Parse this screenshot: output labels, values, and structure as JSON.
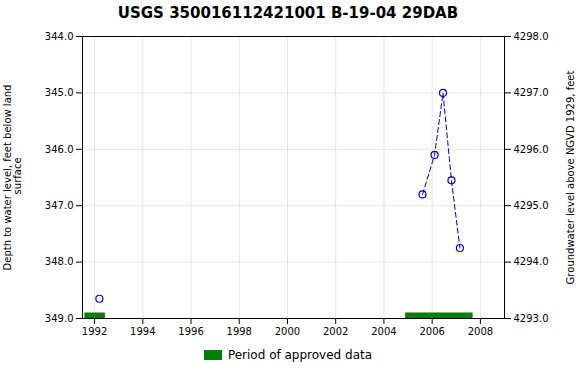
{
  "chart_data": {
    "type": "line",
    "title": "USGS 350016112421001 B-19-04 29DAB",
    "ylabel": "Depth to water level, feet below land\n surface",
    "y2label": "Groundwater level above NGVD 1929, feet",
    "xlim": [
      1991.5,
      2009.0
    ],
    "xticks": [
      1992,
      1994,
      1996,
      1998,
      2000,
      2002,
      2004,
      2006,
      2008
    ],
    "ylim": [
      349.0,
      344.0
    ],
    "yticks": [
      {
        "value": 344.0,
        "label": "344.0"
      },
      {
        "value": 345.0,
        "label": "345.0"
      },
      {
        "value": 346.0,
        "label": "346.0"
      },
      {
        "value": 347.0,
        "label": "347.0"
      },
      {
        "value": 348.0,
        "label": "348.0"
      },
      {
        "value": 349.0,
        "label": "349.0"
      }
    ],
    "y2lim": [
      4293.0,
      4298.0
    ],
    "y2ticks": [
      {
        "value": 4293.0,
        "label": "4293.0"
      },
      {
        "value": 4294.0,
        "label": "4294.0"
      },
      {
        "value": 4295.0,
        "label": "4295.0"
      },
      {
        "value": 4296.0,
        "label": "4296.0"
      },
      {
        "value": 4297.0,
        "label": "4297.0"
      },
      {
        "value": 4298.0,
        "label": "4298.0"
      }
    ],
    "grid": true,
    "series": [
      {
        "x": [
          1992.2
        ],
        "values": [
          348.65
        ],
        "color": "#0000cc",
        "marker": "circle",
        "line_style": "none"
      },
      {
        "x": [
          2005.6,
          2006.1,
          2006.45,
          2006.8,
          2007.15
        ],
        "values": [
          346.8,
          346.1,
          345.0,
          346.55,
          347.75
        ],
        "color": "#0000cc",
        "marker": "circle",
        "line_style": "dashed"
      }
    ],
    "periods": [
      {
        "name": "Period of approved data",
        "color": "#008000",
        "ranges": [
          [
            1991.6,
            1992.45
          ],
          [
            2004.9,
            2007.7
          ]
        ]
      }
    ],
    "legend": "lower center"
  }
}
